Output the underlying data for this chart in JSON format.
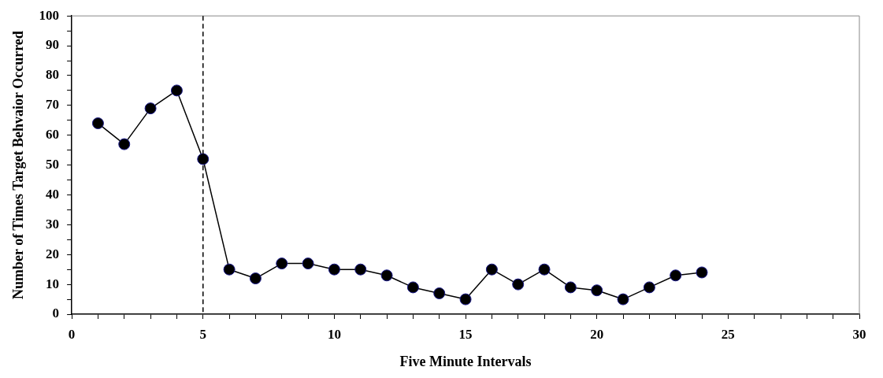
{
  "chart_data": {
    "type": "line",
    "xlabel": "Five Minute Intervals",
    "ylabel": "Number of Times Target Behvaior Occurred",
    "x": [
      1,
      2,
      3,
      4,
      5,
      6,
      7,
      8,
      9,
      10,
      11,
      12,
      13,
      14,
      15,
      16,
      17,
      18,
      19,
      20,
      21,
      22,
      23,
      24
    ],
    "series": [
      {
        "color": "#000000",
        "values": [
          64,
          57,
          69,
          75,
          52,
          15,
          12,
          17,
          17,
          15,
          15,
          13,
          9,
          7,
          5,
          15,
          10,
          15,
          9,
          8,
          5,
          9,
          13,
          14
        ]
      }
    ],
    "xlim": [
      0,
      30
    ],
    "xticks": [
      0,
      {
        "value": 1,
        "label": null
      },
      {
        "value": 2,
        "label": null
      },
      {
        "value": 3,
        "label": null
      },
      {
        "value": 4,
        "label": null
      },
      5,
      {
        "value": 6,
        "label": null
      },
      {
        "value": 7,
        "label": null
      },
      {
        "value": 8,
        "label": null
      },
      {
        "value": 9,
        "label": null
      },
      10,
      {
        "value": 11,
        "label": null
      },
      {
        "value": 12,
        "label": null
      },
      {
        "value": 13,
        "label": null
      },
      {
        "value": 14,
        "label": null
      },
      15,
      {
        "value": 16,
        "label": null
      },
      {
        "value": 17,
        "label": null
      },
      {
        "value": 18,
        "label": null
      },
      {
        "value": 19,
        "label": null
      },
      20,
      {
        "value": 21,
        "label": null
      },
      {
        "value": 22,
        "label": null
      },
      {
        "value": 23,
        "label": null
      },
      {
        "value": 24,
        "label": null
      },
      25,
      {
        "value": 26,
        "label": null
      },
      {
        "value": 27,
        "label": null
      },
      {
        "value": 28,
        "label": null
      },
      {
        "value": 29,
        "label": null
      },
      30
    ],
    "ylim": [
      0,
      100
    ],
    "yticks": [
      0,
      {
        "value": 5,
        "label": null
      },
      10,
      {
        "value": 15,
        "label": null
      },
      20,
      {
        "value": 25,
        "label": null
      },
      30,
      {
        "value": 35,
        "label": null
      },
      40,
      {
        "value": 45,
        "label": null
      },
      50,
      {
        "value": 55,
        "label": null
      },
      60,
      {
        "value": 65,
        "label": null
      },
      70,
      {
        "value": 75,
        "label": null
      },
      80,
      {
        "value": 85,
        "label": null
      },
      90,
      {
        "value": 95,
        "label": null
      },
      100
    ],
    "ref_lines": [
      {
        "axis": "x",
        "value": 5,
        "color": "#000000",
        "line_style": "dashed"
      }
    ],
    "marker": "circle",
    "line_style": "solid",
    "grid": false,
    "legend": false
  }
}
